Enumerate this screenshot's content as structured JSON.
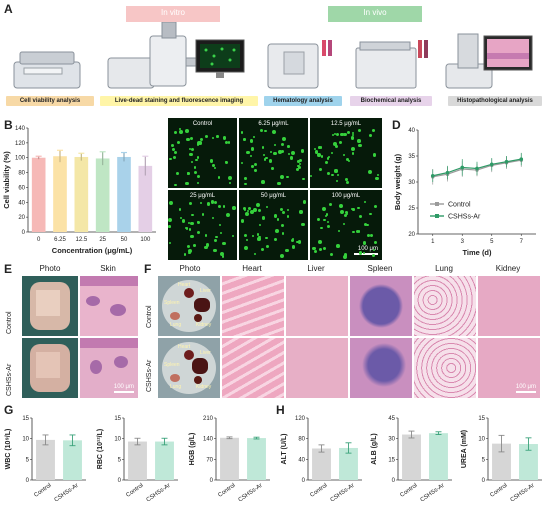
{
  "panel_letters": [
    "A",
    "B",
    "C",
    "D",
    "E",
    "F",
    "G",
    "H"
  ],
  "panel_a": {
    "in_vitro": "In vitro",
    "in_vivo": "In vivo",
    "captions": [
      "Cell viability analysis",
      "Live-dead staining and fluorescence imaging",
      "Hematology analysis",
      "Biochemical analysis",
      "Histopathological analysis"
    ],
    "colors": {
      "cell": "#f7d9a6",
      "live": "#fff5a8",
      "hema": "#9fd3ec",
      "bio": "#e7d3ea",
      "histo": "#d9d9d9",
      "in_vitro": "#f7c6c6",
      "in_vivo": "#bfe3c4"
    }
  },
  "panel_c": {
    "labels": [
      "Control",
      "6.25 μg/mL",
      "12.5 μg/mL",
      "25 μg/mL",
      "50 μg/mL",
      "100 μg/mL"
    ],
    "scale": "100 μm"
  },
  "panel_e": {
    "headers": [
      "Photo",
      "Skin"
    ],
    "rows": [
      "Control",
      "CSHSs-Ar"
    ],
    "scale": "100 μm"
  },
  "panel_f": {
    "headers": [
      "Photo",
      "Heart",
      "Liver",
      "Spleen",
      "Lung",
      "Kidney"
    ],
    "rows": [
      "Control",
      "CSHSs-Ar"
    ],
    "organ_labels": [
      "Heart",
      "Liver",
      "Spleen",
      "Lung",
      "Kidney"
    ],
    "scale": "100 μm"
  },
  "chart_data": [
    {
      "id": "B",
      "type": "bar",
      "title": "",
      "xlabel": "Concentration (μg/mL)",
      "ylabel": "Cell viability (%)",
      "categories": [
        "0",
        "6.25",
        "12.5",
        "25",
        "50",
        "100"
      ],
      "values": [
        100,
        102,
        101,
        99,
        101,
        89
      ],
      "errors": [
        2,
        8,
        5,
        9,
        6,
        13
      ],
      "colors": [
        "#f6b9b7",
        "#fbe2a6",
        "#f4e7a7",
        "#bfe6c4",
        "#a9d2ea",
        "#e4cfe6"
      ],
      "ylim": [
        0,
        140
      ],
      "yticks": [
        0,
        20,
        40,
        60,
        80,
        100,
        120,
        140
      ]
    },
    {
      "id": "D",
      "type": "line",
      "xlabel": "Time (d)",
      "ylabel": "Body weight (g)",
      "x": [
        1,
        2,
        3,
        4,
        5,
        6,
        7
      ],
      "xticks": [
        1,
        3,
        5,
        7
      ],
      "ylim": [
        20,
        40
      ],
      "yticks": [
        20,
        25,
        30,
        35,
        40
      ],
      "legend_position": "lower-right",
      "series": [
        {
          "name": "Control",
          "values": [
            31.0,
            31.5,
            32.5,
            32.3,
            33.2,
            33.7,
            34.2
          ],
          "errors": [
            1.5,
            1.4,
            1.5,
            1.2,
            1.3,
            1.2,
            1.3
          ],
          "color": "#9a9a9a"
        },
        {
          "name": "CSHSs-Ar",
          "values": [
            31.2,
            31.8,
            32.8,
            32.6,
            33.4,
            33.9,
            34.4
          ],
          "errors": [
            1.2,
            1.3,
            1.6,
            1.3,
            1.2,
            1.1,
            1.2
          ],
          "color": "#2e9a66"
        }
      ]
    },
    {
      "id": "WBC",
      "type": "bar",
      "categories": [
        "Control",
        "CSHSs-Ar"
      ],
      "values": [
        9.7,
        9.6
      ],
      "errors": [
        1.2,
        1.3
      ],
      "ylabel": "WBC (10⁹/L)",
      "ylim": [
        0,
        15
      ],
      "yticks": [
        0,
        5,
        10,
        15
      ],
      "colors": [
        "#d6d6d6",
        "#bfe8d8"
      ]
    },
    {
      "id": "RBC",
      "type": "bar",
      "categories": [
        "Control",
        "CSHSs-Ar"
      ],
      "values": [
        9.3,
        9.3
      ],
      "errors": [
        0.8,
        0.8
      ],
      "ylabel": "RBC (10¹²/L)",
      "ylim": [
        0,
        15
      ],
      "yticks": [
        0,
        5,
        10,
        15
      ],
      "colors": [
        "#d6d6d6",
        "#bfe8d8"
      ]
    },
    {
      "id": "HGB",
      "type": "bar",
      "categories": [
        "Control",
        "CSHSs-Ar"
      ],
      "values": [
        143,
        142
      ],
      "errors": [
        3,
        3
      ],
      "ylabel": "HGB (g/L)",
      "ylim": [
        0,
        210
      ],
      "yticks": [
        0,
        70,
        140,
        210
      ],
      "colors": [
        "#d6d6d6",
        "#bfe8d8"
      ]
    },
    {
      "id": "ALT",
      "type": "bar",
      "categories": [
        "Control",
        "CSHSs-Ar"
      ],
      "values": [
        61,
        62
      ],
      "errors": [
        7,
        10
      ],
      "ylabel": "ALT (U/L)",
      "ylim": [
        0,
        120
      ],
      "yticks": [
        0,
        40,
        80,
        120
      ],
      "colors": [
        "#d6d6d6",
        "#bfe8d8"
      ]
    },
    {
      "id": "ALB",
      "type": "bar",
      "categories": [
        "Control",
        "CSHSs-Ar"
      ],
      "values": [
        33,
        34
      ],
      "errors": [
        2.5,
        1
      ],
      "ylabel": "ALB (g/L)",
      "ylim": [
        0,
        45
      ],
      "yticks": [
        0,
        15,
        30,
        45
      ],
      "colors": [
        "#d6d6d6",
        "#bfe8d8"
      ]
    },
    {
      "id": "UREA",
      "type": "bar",
      "categories": [
        "Control",
        "CSHSs-Ar"
      ],
      "values": [
        8.8,
        8.7
      ],
      "errors": [
        2,
        1.5
      ],
      "ylabel": "UREA (mM)",
      "ylim": [
        0,
        15
      ],
      "yticks": [
        0,
        5,
        10,
        15
      ],
      "colors": [
        "#d6d6d6",
        "#bfe8d8"
      ]
    }
  ]
}
